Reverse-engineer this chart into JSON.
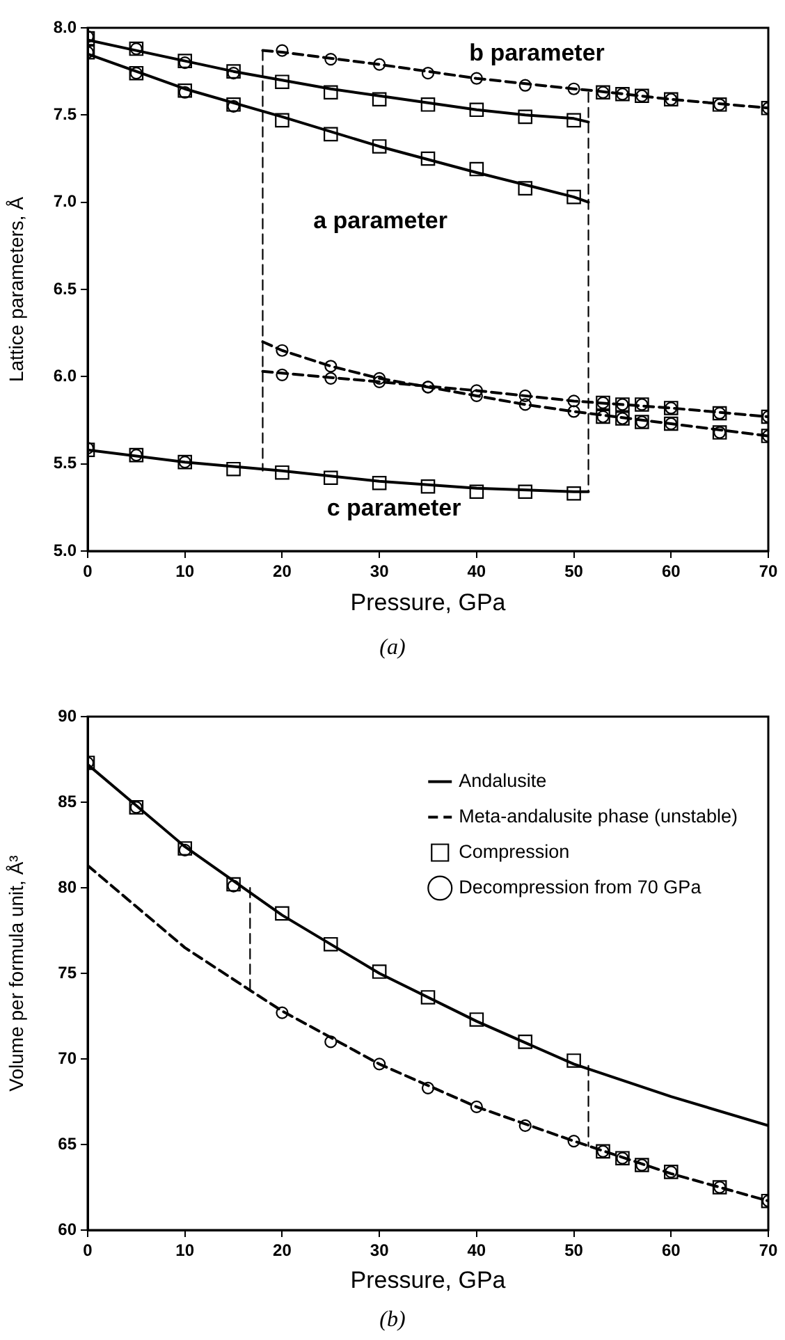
{
  "chart_data": [
    {
      "type": "line",
      "xlabel": "Pressure, GPa",
      "ylabel": "Lattice parameters, Å",
      "xlim": [
        0,
        70
      ],
      "xticks": [
        0,
        10,
        20,
        30,
        40,
        50,
        60,
        70
      ],
      "ylim": [
        5,
        8
      ],
      "yticks": [
        {
          "value": 5,
          "label": "5.0"
        },
        {
          "value": 5.5,
          "label": "5.5"
        },
        {
          "value": 6,
          "label": "6.0"
        },
        {
          "value": 6.5,
          "label": "6.5"
        },
        {
          "value": 7,
          "label": "7.0"
        },
        {
          "value": 7.5,
          "label": "7.5"
        },
        {
          "value": 8,
          "label": "8.0"
        }
      ],
      "series": [
        {
          "type": "line",
          "color": "#000000",
          "line_style": "solid",
          "x": [
            0,
            5,
            10,
            15,
            20,
            25,
            30,
            35,
            40,
            45,
            50,
            51.5
          ],
          "values": [
            7.93,
            7.87,
            7.81,
            7.75,
            7.7,
            7.65,
            7.61,
            7.57,
            7.53,
            7.5,
            7.48,
            7.46
          ]
        },
        {
          "type": "line",
          "color": "#000000",
          "line_style": "dashed",
          "x": [
            18,
            20,
            30,
            40,
            50,
            52,
            60,
            70
          ],
          "values": [
            7.87,
            7.86,
            7.79,
            7.71,
            7.65,
            7.64,
            7.59,
            7.54
          ]
        },
        {
          "type": "line",
          "color": "#000000",
          "line_style": "solid",
          "x": [
            0,
            10,
            20,
            30,
            40,
            50,
            51.5
          ],
          "values": [
            7.85,
            7.65,
            7.49,
            7.32,
            7.17,
            7.03,
            7.0
          ]
        },
        {
          "type": "line",
          "color": "#000000",
          "line_style": "solid",
          "x": [
            0,
            10,
            20,
            30,
            40,
            50,
            51.5
          ],
          "values": [
            5.58,
            5.51,
            5.46,
            5.4,
            5.36,
            5.34,
            5.34
          ]
        },
        {
          "type": "line",
          "color": "#000000",
          "line_style": "dashed",
          "x": [
            18,
            20,
            25,
            30,
            35,
            40,
            45,
            50,
            60,
            70
          ],
          "values": [
            6.2,
            6.15,
            6.06,
            5.99,
            5.94,
            5.89,
            5.84,
            5.8,
            5.73,
            5.66
          ]
        },
        {
          "type": "line",
          "color": "#000000",
          "line_style": "dashed",
          "x": [
            18,
            30,
            40,
            50,
            60,
            70
          ],
          "values": [
            6.03,
            5.97,
            5.92,
            5.86,
            5.82,
            5.77
          ]
        },
        {
          "type": "line",
          "color": "#000000",
          "line_style": "dashed",
          "x": [
            18,
            18
          ],
          "values": [
            7.87,
            5.46
          ]
        },
        {
          "type": "line",
          "color": "#000000",
          "line_style": "dashed",
          "x": [
            51.5,
            51.5
          ],
          "values": [
            7.63,
            5.34
          ]
        },
        {
          "type": "scatter",
          "color": "#000000",
          "marker": "square",
          "x": [
            0,
            5,
            10,
            15,
            20,
            25,
            30,
            35,
            40,
            45,
            50,
            53,
            55,
            57,
            60,
            65,
            70,
            0,
            5,
            10,
            15,
            20,
            25,
            30,
            35,
            40,
            45,
            50,
            0,
            5,
            10,
            15,
            20,
            25,
            30,
            35,
            40,
            45,
            50,
            53,
            55,
            57,
            60,
            65,
            70,
            53,
            55,
            57,
            60,
            65,
            70
          ],
          "values": [
            7.94,
            7.88,
            7.81,
            7.75,
            7.69,
            7.63,
            7.59,
            7.56,
            7.53,
            7.49,
            7.47,
            7.63,
            7.62,
            7.61,
            7.59,
            7.56,
            7.54,
            7.86,
            7.74,
            7.64,
            7.56,
            7.47,
            7.39,
            7.32,
            7.25,
            7.19,
            7.08,
            7.03,
            5.58,
            5.55,
            5.51,
            5.47,
            5.45,
            5.42,
            5.39,
            5.37,
            5.34,
            5.34,
            5.33,
            5.77,
            5.76,
            5.74,
            5.73,
            5.68,
            5.66,
            5.85,
            5.84,
            5.84,
            5.82,
            5.79,
            5.77
          ]
        },
        {
          "type": "scatter",
          "color": "#000000",
          "marker": "circle",
          "x": [
            0,
            5,
            10,
            15,
            20,
            25,
            30,
            35,
            40,
            45,
            50,
            53,
            55,
            57,
            60,
            65,
            70,
            0,
            5,
            10,
            15,
            0,
            5,
            10,
            20,
            25,
            30,
            35,
            40,
            45,
            50,
            53,
            55,
            57,
            60,
            65,
            70,
            20,
            25,
            30,
            35,
            40,
            45,
            50,
            53,
            55,
            57,
            60,
            65,
            70
          ],
          "values": [
            7.95,
            7.88,
            7.8,
            7.74,
            7.87,
            7.82,
            7.79,
            7.74,
            7.71,
            7.67,
            7.65,
            7.63,
            7.62,
            7.61,
            7.59,
            7.56,
            7.54,
            7.86,
            7.74,
            7.63,
            7.55,
            5.59,
            5.55,
            5.51,
            6.15,
            6.06,
            5.99,
            5.94,
            5.89,
            5.84,
            5.8,
            5.77,
            5.76,
            5.74,
            5.73,
            5.68,
            5.66,
            6.01,
            5.99,
            5.97,
            5.94,
            5.92,
            5.89,
            5.86,
            5.85,
            5.84,
            5.84,
            5.82,
            5.79,
            5.77
          ]
        }
      ],
      "annotations": [
        "b parameter",
        "a parameter",
        "c parameter",
        "(a)"
      ]
    },
    {
      "type": "line",
      "xlabel": "Pressure, GPa",
      "ylabel": "Volume per formula unit, Å³",
      "xlim": [
        0,
        70
      ],
      "xticks": [
        0,
        10,
        20,
        30,
        40,
        50,
        60,
        70
      ],
      "ylim": [
        60,
        90
      ],
      "yticks": [
        60,
        65,
        70,
        75,
        80,
        85,
        90
      ],
      "legend": "top right",
      "series": [
        {
          "type": "line",
          "name": "Andalusite",
          "color": "#000000",
          "line_style": "solid",
          "x": [
            0,
            10,
            20,
            30,
            40,
            50,
            60,
            70
          ],
          "values": [
            87.2,
            82.4,
            78.4,
            75.0,
            72.2,
            69.7,
            67.8,
            66.1
          ]
        },
        {
          "type": "line",
          "name": "Meta-andalusite phase (unstable)",
          "color": "#000000",
          "line_style": "dashed",
          "x": [
            0,
            10,
            17,
            20,
            30,
            40,
            50,
            60,
            70
          ],
          "values": [
            81.3,
            76.5,
            73.9,
            72.8,
            69.7,
            67.2,
            65.2,
            63.3,
            61.7
          ]
        },
        {
          "type": "scatter",
          "name": "Compression",
          "color": "#000000",
          "marker": "square",
          "x": [
            0,
            5,
            10,
            15,
            20,
            25,
            30,
            35,
            40,
            45,
            50,
            53,
            55,
            57,
            60,
            65,
            70
          ],
          "values": [
            87.3,
            84.7,
            82.3,
            80.2,
            78.5,
            76.7,
            75.1,
            73.6,
            72.3,
            71.0,
            69.9,
            64.6,
            64.2,
            63.8,
            63.4,
            62.5,
            61.7
          ]
        },
        {
          "type": "scatter",
          "name": "Decompression from 70 GPa",
          "color": "#000000",
          "marker": "circle",
          "x": [
            0,
            5,
            10,
            15,
            20,
            25,
            30,
            35,
            40,
            45,
            50,
            53,
            55,
            57,
            60,
            65,
            70
          ],
          "values": [
            87.3,
            84.7,
            82.2,
            80.1,
            72.7,
            71.0,
            69.7,
            68.3,
            67.2,
            66.1,
            65.2,
            64.6,
            64.2,
            63.8,
            63.4,
            62.5,
            61.7
          ]
        },
        {
          "type": "line",
          "color": "#000000",
          "line_style": "dashed",
          "x": [
            16.7,
            16.7
          ],
          "values": [
            80.0,
            73.9
          ]
        },
        {
          "type": "line",
          "color": "#000000",
          "line_style": "dashed",
          "x": [
            51.5,
            51.5
          ],
          "values": [
            69.6,
            64.9
          ]
        }
      ],
      "annotations": [
        "(b)"
      ]
    }
  ]
}
